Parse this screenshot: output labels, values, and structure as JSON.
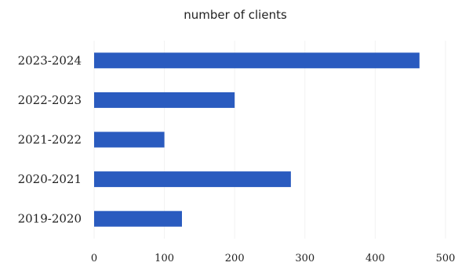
{
  "chart_data": {
    "type": "bar",
    "orientation": "horizontal",
    "title": "number of clients",
    "categories": [
      "2023-2024",
      "2022-2023",
      "2021-2022",
      "2020-2021",
      "2019-2020"
    ],
    "values": [
      463,
      200,
      100,
      280,
      125
    ],
    "xlim": [
      0,
      500
    ],
    "xticks": [
      "0",
      "100",
      "200",
      "300",
      "400",
      "500"
    ],
    "xlabel": "",
    "ylabel": "",
    "grid": true,
    "legend": "none",
    "bar_color": "#2a5bbf"
  }
}
